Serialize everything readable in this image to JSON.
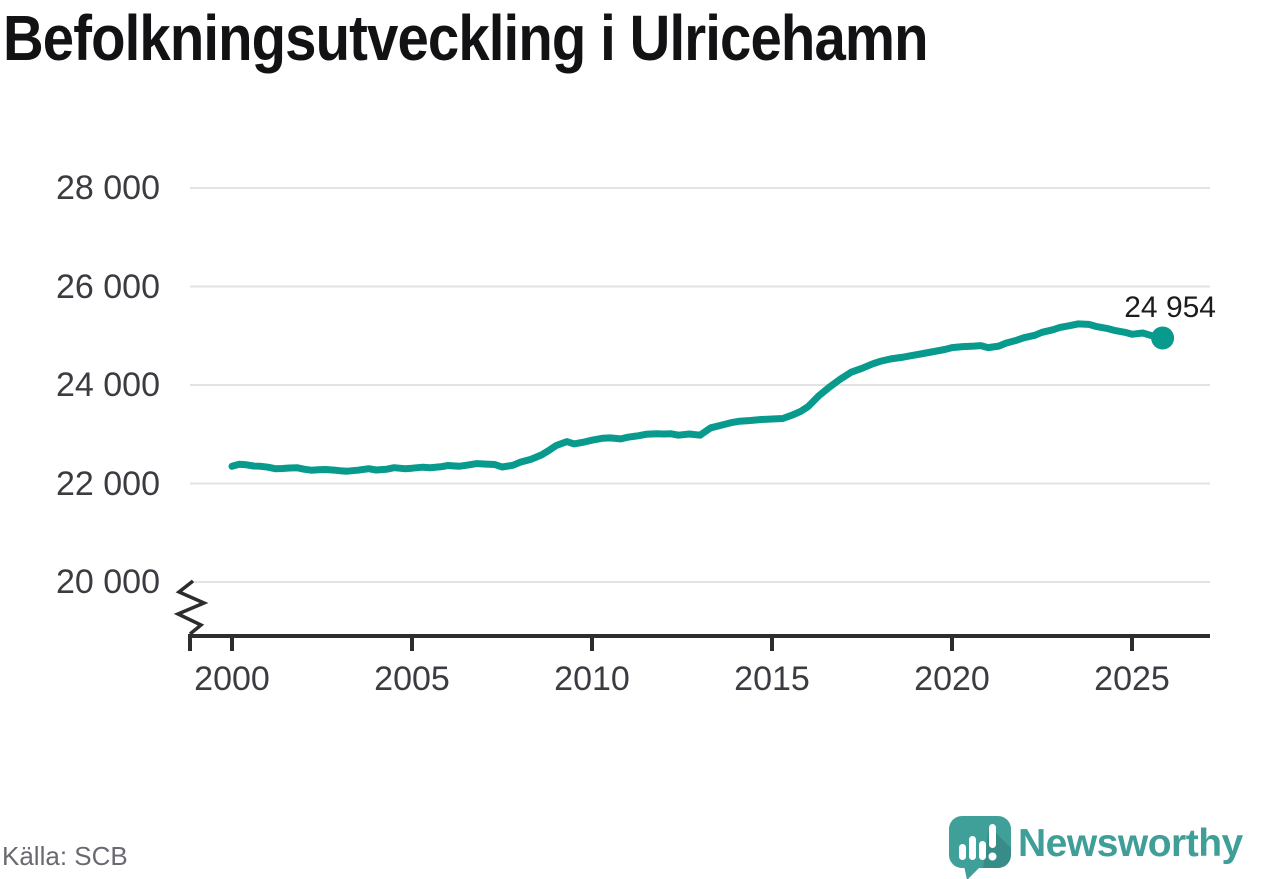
{
  "chart_data": {
    "type": "line",
    "title": "Befolkningsutveckling i Ulricehamn",
    "grid": "horizontal",
    "legend": "none",
    "axis_break": true,
    "xlim": [
      1998.85,
      2027.2
    ],
    "ylim": [
      20000,
      28000
    ],
    "x_ticks": [
      {
        "value": 2000,
        "label": "2000"
      },
      {
        "value": 2005,
        "label": "2005"
      },
      {
        "value": 2010,
        "label": "2010"
      },
      {
        "value": 2015,
        "label": "2015"
      },
      {
        "value": 2020,
        "label": "2020"
      },
      {
        "value": 2025,
        "label": "2025"
      }
    ],
    "y_ticks": [
      {
        "value": 28000,
        "label": "28 000"
      },
      {
        "value": 26000,
        "label": "26 000"
      },
      {
        "value": 24000,
        "label": "24 000"
      },
      {
        "value": 22000,
        "label": "22 000"
      },
      {
        "value": 20000,
        "label": "20 000"
      }
    ],
    "end_label": "24 954",
    "end_point": {
      "x": 2025.85,
      "y": 24954
    },
    "series": [
      {
        "points": [
          [
            2000.0,
            22350
          ],
          [
            2000.2,
            22390
          ],
          [
            2000.4,
            22380
          ],
          [
            2000.6,
            22355
          ],
          [
            2000.8,
            22350
          ],
          [
            2001.0,
            22330
          ],
          [
            2001.2,
            22300
          ],
          [
            2001.4,
            22305
          ],
          [
            2001.6,
            22315
          ],
          [
            2001.8,
            22320
          ],
          [
            2002.0,
            22290
          ],
          [
            2002.2,
            22270
          ],
          [
            2002.4,
            22280
          ],
          [
            2002.6,
            22285
          ],
          [
            2002.8,
            22275
          ],
          [
            2003.0,
            22260
          ],
          [
            2003.2,
            22250
          ],
          [
            2003.5,
            22270
          ],
          [
            2003.8,
            22300
          ],
          [
            2004.0,
            22275
          ],
          [
            2004.3,
            22290
          ],
          [
            2004.5,
            22320
          ],
          [
            2004.8,
            22300
          ],
          [
            2005.0,
            22310
          ],
          [
            2005.3,
            22330
          ],
          [
            2005.5,
            22320
          ],
          [
            2005.8,
            22340
          ],
          [
            2006.0,
            22365
          ],
          [
            2006.3,
            22350
          ],
          [
            2006.5,
            22370
          ],
          [
            2006.8,
            22405
          ],
          [
            2007.0,
            22395
          ],
          [
            2007.3,
            22385
          ],
          [
            2007.5,
            22335
          ],
          [
            2007.8,
            22370
          ],
          [
            2008.0,
            22430
          ],
          [
            2008.3,
            22490
          ],
          [
            2008.6,
            22580
          ],
          [
            2008.8,
            22670
          ],
          [
            2009.0,
            22770
          ],
          [
            2009.3,
            22850
          ],
          [
            2009.5,
            22805
          ],
          [
            2009.8,
            22845
          ],
          [
            2010.0,
            22880
          ],
          [
            2010.3,
            22920
          ],
          [
            2010.5,
            22925
          ],
          [
            2010.8,
            22905
          ],
          [
            2011.0,
            22940
          ],
          [
            2011.3,
            22970
          ],
          [
            2011.5,
            23000
          ],
          [
            2011.8,
            23010
          ],
          [
            2012.0,
            23005
          ],
          [
            2012.2,
            23010
          ],
          [
            2012.4,
            22980
          ],
          [
            2012.7,
            23005
          ],
          [
            2013.0,
            22980
          ],
          [
            2013.3,
            23130
          ],
          [
            2013.6,
            23185
          ],
          [
            2013.9,
            23240
          ],
          [
            2014.1,
            23265
          ],
          [
            2014.4,
            23280
          ],
          [
            2014.7,
            23300
          ],
          [
            2015.0,
            23310
          ],
          [
            2015.3,
            23320
          ],
          [
            2015.6,
            23400
          ],
          [
            2015.8,
            23465
          ],
          [
            2016.0,
            23560
          ],
          [
            2016.3,
            23780
          ],
          [
            2016.6,
            23960
          ],
          [
            2016.9,
            24120
          ],
          [
            2017.2,
            24260
          ],
          [
            2017.5,
            24340
          ],
          [
            2017.8,
            24430
          ],
          [
            2018.0,
            24480
          ],
          [
            2018.3,
            24530
          ],
          [
            2018.6,
            24560
          ],
          [
            2018.9,
            24600
          ],
          [
            2019.2,
            24640
          ],
          [
            2019.5,
            24680
          ],
          [
            2019.8,
            24720
          ],
          [
            2020.0,
            24760
          ],
          [
            2020.3,
            24780
          ],
          [
            2020.6,
            24790
          ],
          [
            2020.8,
            24800
          ],
          [
            2021.0,
            24760
          ],
          [
            2021.3,
            24790
          ],
          [
            2021.5,
            24850
          ],
          [
            2021.8,
            24910
          ],
          [
            2022.0,
            24960
          ],
          [
            2022.3,
            25010
          ],
          [
            2022.5,
            25070
          ],
          [
            2022.8,
            25120
          ],
          [
            2023.0,
            25170
          ],
          [
            2023.3,
            25210
          ],
          [
            2023.5,
            25240
          ],
          [
            2023.8,
            25230
          ],
          [
            2024.0,
            25190
          ],
          [
            2024.3,
            25150
          ],
          [
            2024.5,
            25110
          ],
          [
            2024.8,
            25070
          ],
          [
            2025.0,
            25030
          ],
          [
            2025.3,
            25055
          ],
          [
            2025.6,
            24990
          ],
          [
            2025.85,
            24954
          ]
        ]
      }
    ]
  },
  "source": {
    "label": "Källa: SCB"
  },
  "branding": {
    "name": "Newsworthy"
  },
  "colors": {
    "line": "#079a8d",
    "grid": "#e3e3e3",
    "axis": "#2d2d2d",
    "tick_label": "#3b3b41",
    "title": "#121215",
    "annotation": "#1c1c1c",
    "source": "#696971",
    "logo": "#3f9e98",
    "background": "#ffffff"
  }
}
